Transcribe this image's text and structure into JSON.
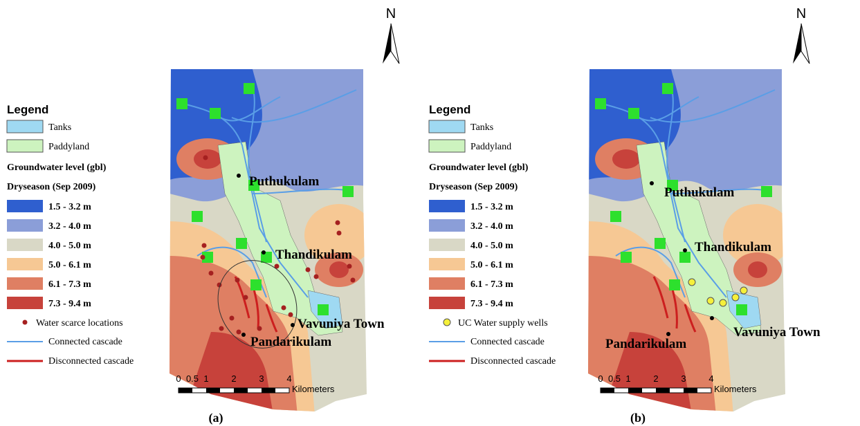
{
  "panels": [
    {
      "caption": "(a)",
      "north": "N",
      "legend": {
        "title": "Legend",
        "items": [
          "Tanks",
          "Paddyland"
        ],
        "groundwater": "Groundwater level (gbl)",
        "season": "Dryseason (Sep 2009)",
        "classes": [
          "1.5 - 3.2 m",
          "3.2 - 4.0 m",
          "4.0 - 5.0 m",
          "5.0 - 6.1 m",
          "6.1 - 7.3 m",
          "7.3 - 9.4 m"
        ],
        "points": "Water scarce locations",
        "lines": [
          "Connected cascade",
          "Disconnected cascade"
        ]
      },
      "places": [
        "Puthukulam",
        "Thandikulam",
        "Vavuniya Town",
        "Pandarikulam"
      ],
      "scale": {
        "ticks": [
          0,
          0.5,
          1,
          2,
          3,
          4
        ],
        "unit": "Kilometers"
      }
    },
    {
      "caption": "(b)",
      "north": "N",
      "legend": {
        "title": "Legend",
        "items": [
          "Tanks",
          "Paddyland"
        ],
        "groundwater": "Groundwater level (gbl)",
        "season": "Dryseason (Sep 2009)",
        "classes": [
          "1.5 - 3.2 m",
          "3.2 - 4.0 m",
          "4.0 - 5.0 m",
          "5.0 - 6.1 m",
          "6.1 - 7.3 m",
          "7.3 - 9.4 m"
        ],
        "points": "UC Water supply wells",
        "lines": [
          "Connected cascade",
          "Disconnected cascade"
        ]
      },
      "places": [
        "Puthukulam",
        "Thandikulam",
        "Vavuniya Town",
        "Pandarikulam"
      ],
      "scale": {
        "ticks": [
          0,
          0.5,
          1,
          2,
          3,
          4
        ],
        "unit": "Kilometers"
      }
    }
  ]
}
